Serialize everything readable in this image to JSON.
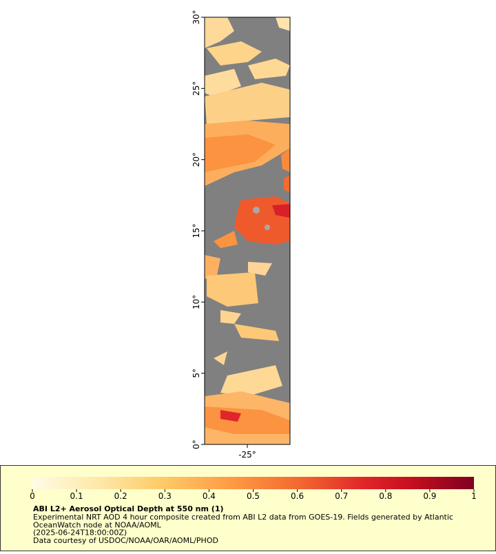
{
  "map": {
    "lat_axis": {
      "lim": [
        0,
        30
      ],
      "ticks": [
        {
          "value": 0,
          "label": "0°"
        },
        {
          "value": 5,
          "label": "5°"
        },
        {
          "value": 10,
          "label": "10°"
        },
        {
          "value": 15,
          "label": "15°"
        },
        {
          "value": 20,
          "label": "20°"
        },
        {
          "value": 25,
          "label": "25°"
        },
        {
          "value": 30,
          "label": "30°"
        }
      ]
    },
    "lon_axis": {
      "lim": [
        -28,
        -22
      ],
      "ticks": [
        {
          "value": -25,
          "label": "-25°"
        }
      ]
    }
  },
  "colorbar": {
    "lim": [
      0,
      1
    ],
    "ticks": [
      0,
      0.1,
      0.2,
      0.3,
      0.4,
      0.5,
      0.6,
      0.7,
      0.8,
      0.9,
      1
    ]
  },
  "legend": {
    "title": "ABI L2+ Aerosol Optical Depth at 550 nm (1)",
    "lines": [
      "Experimental NRT AOD 4 hour composite created from ABI L2 data from GOES-19. Fields generated by Atlantic",
      "OceanWatch node at NOAA/AOML",
      "(2025-06-24T18:00:00Z)",
      "Data courtesy of USDOC/NOAA/OAR/AOML/PHOD"
    ]
  }
}
